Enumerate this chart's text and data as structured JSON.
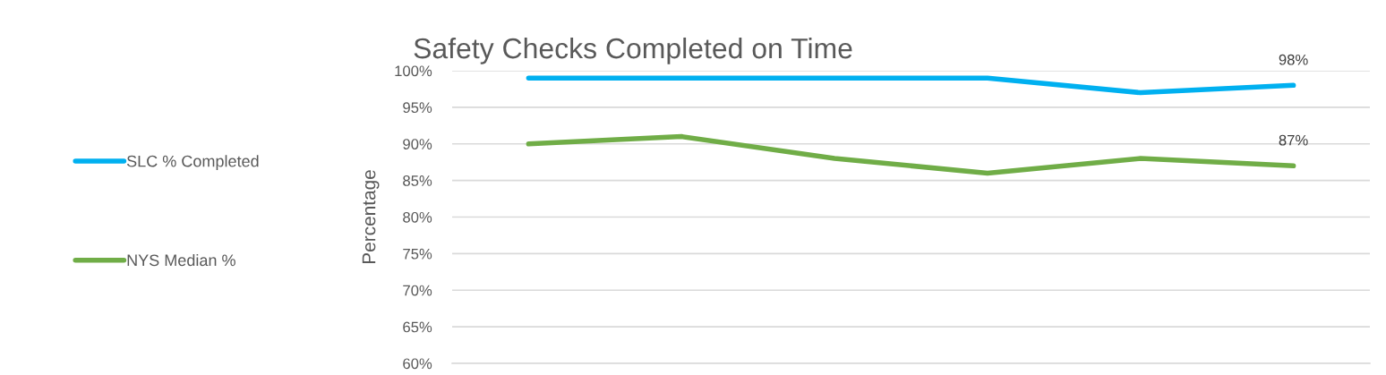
{
  "chart_data": {
    "type": "line",
    "title": "Safety Checks Completed on Time",
    "ylabel": "Percentage",
    "categories": [
      null,
      null,
      null,
      null,
      null,
      null
    ],
    "series": [
      {
        "name": "SLC % Completed",
        "color": "#00b0f0",
        "values": [
          99,
          99,
          99,
          99,
          97,
          98
        ],
        "value_labels": [
          null,
          null,
          null,
          null,
          null,
          "98%"
        ]
      },
      {
        "name": "NYS Median %",
        "color": "#70ad47",
        "values": [
          90,
          91,
          88,
          86,
          88,
          87
        ],
        "value_labels": [
          null,
          null,
          null,
          null,
          null,
          "87%"
        ]
      }
    ],
    "ylim": [
      60,
      100
    ],
    "yticks": [
      {
        "value": 60,
        "label": "60%"
      },
      {
        "value": 65,
        "label": "65%"
      },
      {
        "value": 70,
        "label": "70%"
      },
      {
        "value": 75,
        "label": "75%"
      },
      {
        "value": 80,
        "label": "80%"
      },
      {
        "value": 85,
        "label": "85%"
      },
      {
        "value": 90,
        "label": "90%"
      },
      {
        "value": 95,
        "label": "95%"
      },
      {
        "value": 100,
        "label": "100%"
      }
    ],
    "grid": "y",
    "legend": "left",
    "line_style": "solid",
    "tick_labels": "y"
  }
}
